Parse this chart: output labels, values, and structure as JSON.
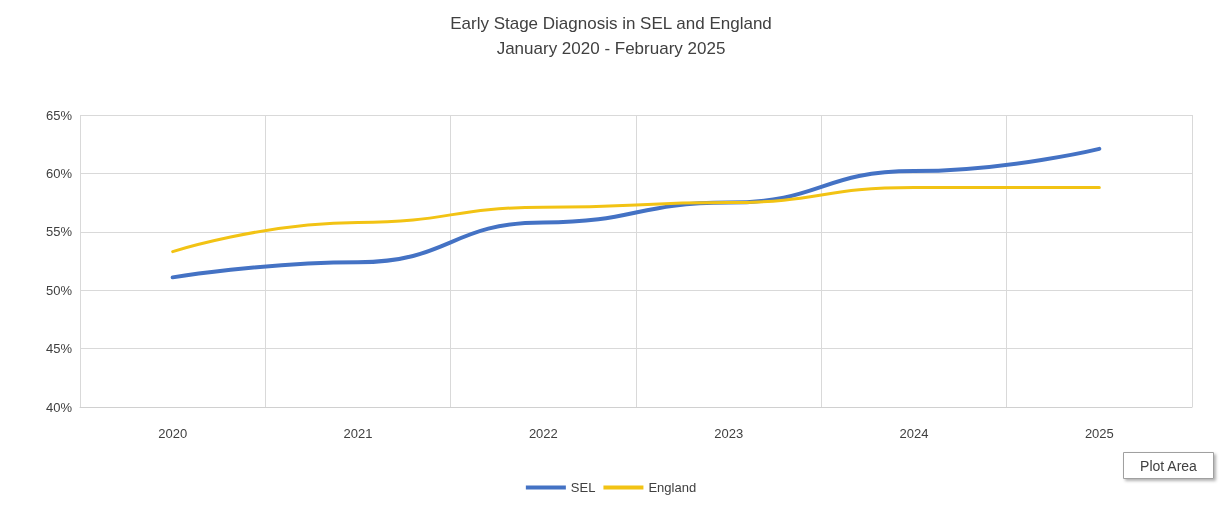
{
  "chart_data": {
    "type": "line",
    "title": "Early Stage Diagnosis in SEL and England",
    "subtitle": "January 2020 - February 2025",
    "categories": [
      "2020",
      "2021",
      "2022",
      "2023",
      "2024",
      "2025"
    ],
    "series": [
      {
        "name": "SEL",
        "color": "#4472c4",
        "values": [
          51.1,
          52.4,
          55.8,
          57.5,
          60.2,
          62.1
        ]
      },
      {
        "name": "England",
        "color": "#f2c314",
        "values": [
          53.3,
          55.8,
          57.1,
          57.5,
          58.8,
          58.8
        ]
      }
    ],
    "ylim": [
      40,
      65
    ],
    "yticks": [
      {
        "value": 40,
        "label": "40%"
      },
      {
        "value": 45,
        "label": "45%"
      },
      {
        "value": 50,
        "label": "50%"
      },
      {
        "value": 55,
        "label": "55%"
      },
      {
        "value": 60,
        "label": "60%"
      },
      {
        "value": 65,
        "label": "65%"
      }
    ],
    "grid": true,
    "legend": "bottom",
    "marker": "none",
    "line_style": "solid",
    "annotations": [
      "Plot Area"
    ]
  }
}
